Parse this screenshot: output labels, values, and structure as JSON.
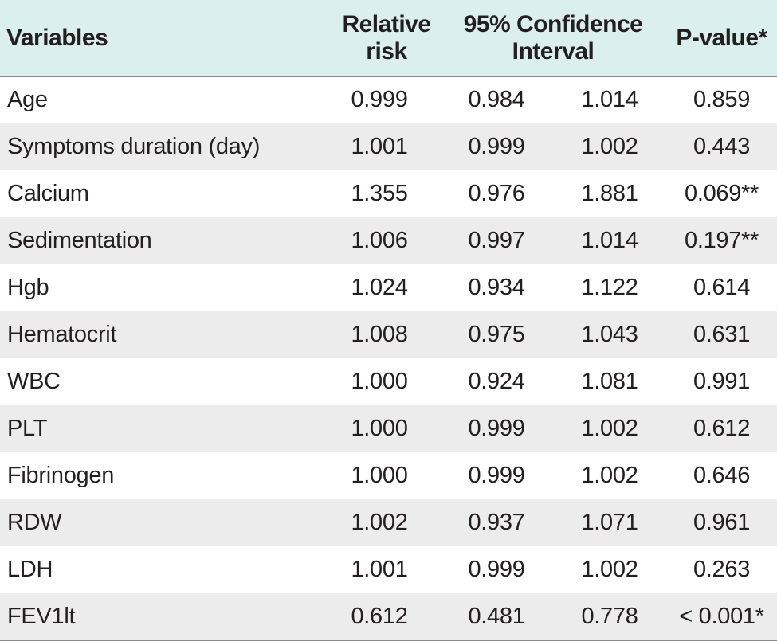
{
  "table": {
    "headers": {
      "variables": "Variables",
      "relative_risk_line1": "Relative",
      "relative_risk_line2": "risk",
      "ci_line1": "95% Confidence",
      "ci_line2": "Interval",
      "p_value": "P-value*"
    },
    "rows": [
      {
        "variable": "Age",
        "relative_risk": "0.999",
        "ci_low": "0.984",
        "ci_high": "1.014",
        "p_value": "0.859"
      },
      {
        "variable": "Symptoms duration (day)",
        "relative_risk": "1.001",
        "ci_low": "0.999",
        "ci_high": "1.002",
        "p_value": "0.443"
      },
      {
        "variable": "Calcium",
        "relative_risk": "1.355",
        "ci_low": "0.976",
        "ci_high": "1.881",
        "p_value": "0.069**"
      },
      {
        "variable": "Sedimentation",
        "relative_risk": "1.006",
        "ci_low": "0.997",
        "ci_high": "1.014",
        "p_value": "0.197**"
      },
      {
        "variable": "Hgb",
        "relative_risk": "1.024",
        "ci_low": "0.934",
        "ci_high": "1.122",
        "p_value": "0.614"
      },
      {
        "variable": "Hematocrit",
        "relative_risk": "1.008",
        "ci_low": "0.975",
        "ci_high": "1.043",
        "p_value": "0.631"
      },
      {
        "variable": "WBC",
        "relative_risk": "1.000",
        "ci_low": "0.924",
        "ci_high": "1.081",
        "p_value": "0.991"
      },
      {
        "variable": "PLT",
        "relative_risk": "1.000",
        "ci_low": "0.999",
        "ci_high": "1.002",
        "p_value": "0.612"
      },
      {
        "variable": "Fibrinogen",
        "relative_risk": "1.000",
        "ci_low": "0.999",
        "ci_high": "1.002",
        "p_value": "0.646"
      },
      {
        "variable": "RDW",
        "relative_risk": "1.002",
        "ci_low": "0.937",
        "ci_high": "1.071",
        "p_value": "0.961"
      },
      {
        "variable": "LDH",
        "relative_risk": "1.001",
        "ci_low": "0.999",
        "ci_high": "1.002",
        "p_value": "0.263"
      },
      {
        "variable": "FEV1lt",
        "relative_risk": "0.612",
        "ci_low": "0.481",
        "ci_high": "0.778",
        "p_value": "< 0.001*"
      }
    ]
  },
  "colors": {
    "header_background": "#dbefee",
    "alternate_row_background": "#ececec",
    "text": "#231f20"
  }
}
